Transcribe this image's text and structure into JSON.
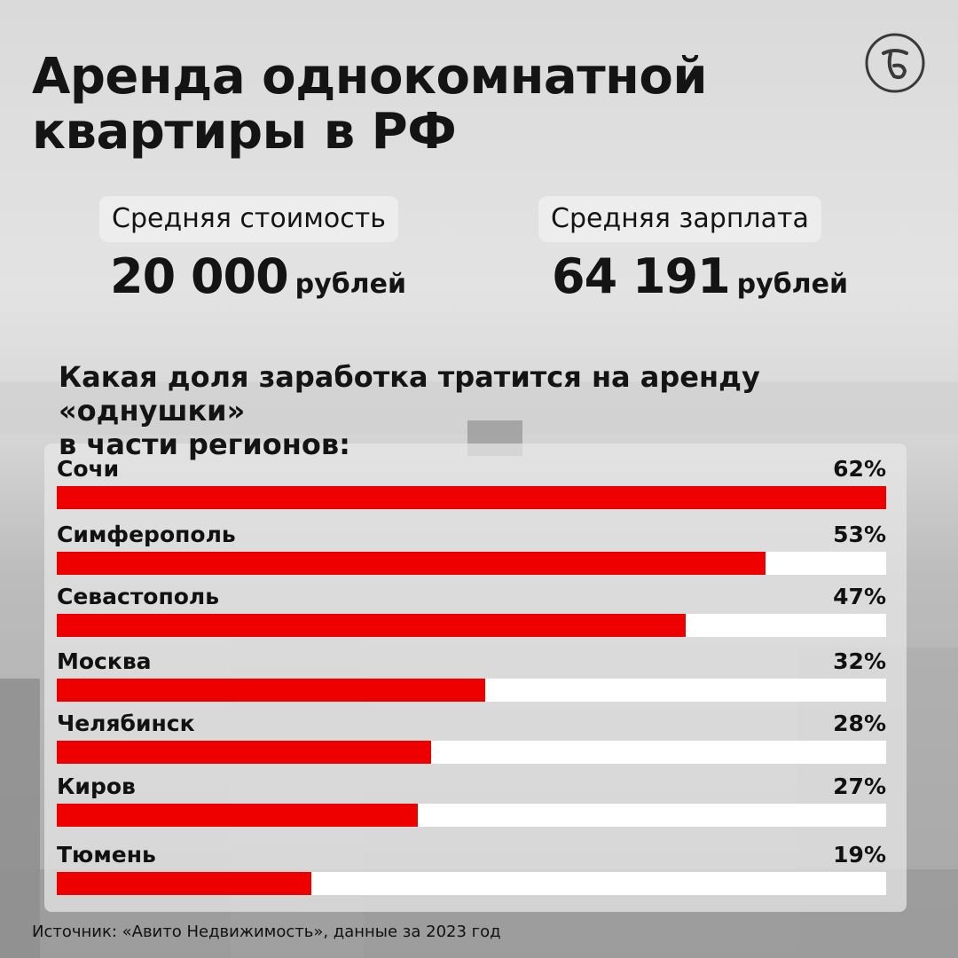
{
  "header": {
    "title_line1": "Аренда однокомнатной",
    "title_line2": "квартиры в РФ"
  },
  "stats": {
    "rent": {
      "label": "Средняя стоимость",
      "value": "20 000",
      "unit": "рублей"
    },
    "salary": {
      "label": "Средняя зарплата",
      "value": "64 191",
      "unit": "рублей"
    }
  },
  "colors": {
    "bar": "#ee0000",
    "track": "#ffffff",
    "text": "#141414"
  },
  "chart_data": {
    "type": "bar",
    "orientation": "horizontal",
    "title_line1": "Какая доля заработка тратится на аренду «однушки»",
    "title_line2": "в части регионов:",
    "categories": [
      "Сочи",
      "Симферополь",
      "Севастополь",
      "Москва",
      "Челябинск",
      "Киров",
      "Тюмень"
    ],
    "values": [
      62,
      53,
      47,
      32,
      28,
      27,
      19
    ],
    "value_labels": [
      "62%",
      "53%",
      "47%",
      "32%",
      "28%",
      "27%",
      "19%"
    ],
    "xlim": [
      0,
      62
    ],
    "grid": false
  },
  "footer": {
    "source": "Источник: «Авито Недвижимость», данные за 2023 год"
  }
}
